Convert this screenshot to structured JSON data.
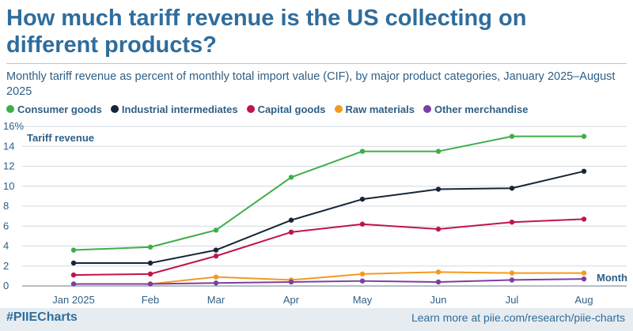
{
  "title": "How much tariff revenue is the US collecting on different products?",
  "subtitle": "Monthly tariff revenue as percent of monthly total import value (CIF), by major product categories, January 2025–August 2025",
  "footer": {
    "hashtag": "#PIIECharts",
    "learn_more": "Learn more at piie.com/research/piie-charts"
  },
  "chart_data": {
    "type": "line",
    "title": "How much tariff revenue is the US collecting on different products?",
    "ylabel": "Tariff revenue",
    "xlabel": "Month",
    "ylim": [
      0,
      16
    ],
    "yticks": [
      0,
      2,
      4,
      6,
      8,
      10,
      12,
      14,
      16
    ],
    "ytick_labels": [
      "0",
      "2",
      "4",
      "6",
      "8",
      "10",
      "12",
      "14",
      "16%"
    ],
    "categories": [
      "Jan 2025",
      "Feb",
      "Mar",
      "Apr",
      "May",
      "Jun",
      "Jul",
      "Aug"
    ],
    "legend_position": "top-left",
    "grid": true,
    "series": [
      {
        "name": "Consumer goods",
        "color": "#3fae49",
        "values": [
          3.6,
          3.9,
          5.6,
          10.9,
          13.5,
          13.5,
          15.0,
          15.0
        ]
      },
      {
        "name": "Industrial intermediates",
        "color": "#15263a",
        "values": [
          2.3,
          2.3,
          3.6,
          6.6,
          8.7,
          9.7,
          9.8,
          11.5
        ]
      },
      {
        "name": "Capital goods",
        "color": "#c0144f",
        "values": [
          1.1,
          1.2,
          3.0,
          5.4,
          6.2,
          5.7,
          6.4,
          6.7
        ]
      },
      {
        "name": "Raw materials",
        "color": "#f49a1f",
        "values": [
          0.2,
          0.2,
          0.9,
          0.6,
          1.2,
          1.4,
          1.3,
          1.3
        ]
      },
      {
        "name": "Other merchandise",
        "color": "#7b3fa0",
        "values": [
          0.2,
          0.2,
          0.3,
          0.4,
          0.5,
          0.4,
          0.6,
          0.7
        ]
      }
    ]
  }
}
